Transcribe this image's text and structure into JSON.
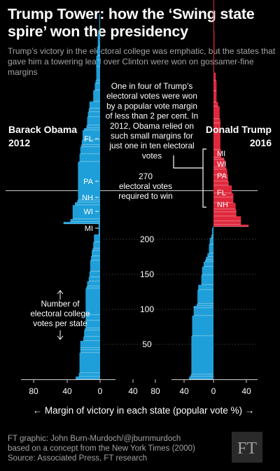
{
  "header": {
    "title": "Trump Tower: how the ‘Swing state spire’ won the presidency",
    "subtitle": "Trump’s victory in the electoral college was emphatic, but the states that gave him a towering lead over Clinton were won on gossamer-fine margins"
  },
  "chart_data": {
    "type": "bar",
    "orientation": "horizontal-stacked-tower",
    "y_unit": "Number of electoral college votes per state",
    "x_label": "← Margin of victory in each state (popular vote %) →",
    "x_ticks": [
      "80",
      "40",
      "0",
      "40"
    ],
    "y_ticks": [
      50,
      100,
      150,
      200
    ],
    "ylim": [
      0,
      335
    ],
    "threshold": {
      "value": 270,
      "label_value": "270",
      "label_text": "electoral votes required to win"
    },
    "grid": true,
    "colors": {
      "democrat": "#1f9fd9",
      "republican": "#e0283c"
    },
    "series": [
      {
        "name": "Barack Obama 2012",
        "panel": "left",
        "bars": [
          {
            "state": "",
            "margin": -32,
            "ev": 4
          },
          {
            "state": "",
            "margin": -28,
            "ev": 5
          },
          {
            "state": "",
            "margin": -27,
            "ev": 29
          },
          {
            "state": "",
            "margin": -26,
            "ev": 4
          },
          {
            "state": "",
            "margin": -26,
            "ev": 3
          },
          {
            "state": "",
            "margin": -26,
            "ev": 10
          },
          {
            "state": "",
            "margin": -22,
            "ev": 6
          },
          {
            "state": "",
            "margin": -21,
            "ev": 9
          },
          {
            "state": "",
            "margin": -20,
            "ev": 3
          },
          {
            "state": "",
            "margin": -19,
            "ev": 11
          },
          {
            "state": "",
            "margin": -19,
            "ev": 8
          },
          {
            "state": "",
            "margin": -19,
            "ev": 38
          },
          {
            "state": "",
            "margin": -18,
            "ev": 3
          },
          {
            "state": "",
            "margin": -17,
            "ev": 7
          },
          {
            "state": "",
            "margin": -15,
            "ev": 6
          },
          {
            "state": "",
            "margin": -14,
            "ev": 8
          },
          {
            "state": "",
            "margin": -13,
            "ev": 16
          },
          {
            "state": "",
            "margin": -12,
            "ev": 6
          },
          {
            "state": "",
            "margin": -11,
            "ev": 8
          },
          {
            "state": "",
            "margin": -10,
            "ev": 3
          },
          {
            "state": "",
            "margin": -9,
            "ev": 9
          },
          {
            "state": "",
            "margin": -8,
            "ev": 11
          },
          {
            "state": "",
            "margin": -2,
            "ev": 15
          },
          {
            "state": "",
            "margin": -48,
            "ev": 3
          },
          {
            "state": "",
            "margin": -39,
            "ev": 4
          },
          {
            "state": "",
            "margin": -36,
            "ev": 20
          },
          {
            "state": "",
            "margin": -33,
            "ev": 4
          },
          {
            "state": "",
            "margin": -30,
            "ev": 3
          },
          {
            "state": "",
            "margin": -29,
            "ev": 55
          },
          {
            "state": "",
            "margin": -27,
            "ev": 11
          },
          {
            "state": "",
            "margin": -26,
            "ev": 10
          },
          {
            "state": "",
            "margin": -25,
            "ev": 3
          },
          {
            "state": "",
            "margin": -24,
            "ev": 7
          },
          {
            "state": "",
            "margin": -23,
            "ev": 14
          },
          {
            "state": "",
            "margin": -21,
            "ev": 3
          },
          {
            "state": "",
            "margin": -18,
            "ev": 4
          },
          {
            "state": "",
            "margin": -17,
            "ev": 12
          },
          {
            "state": "",
            "margin": -16,
            "ev": 7
          },
          {
            "state": "",
            "margin": -15,
            "ev": 5
          },
          {
            "state": "",
            "margin": -14,
            "ev": 10
          },
          {
            "state": "MI",
            "margin": -9,
            "ev": 16
          },
          {
            "state": "WI",
            "margin": -7,
            "ev": 10
          },
          {
            "state": "NH",
            "margin": -6,
            "ev": 4
          },
          {
            "state": "PA",
            "margin": -5,
            "ev": 20
          },
          {
            "state": "",
            "margin": -5,
            "ev": 9
          },
          {
            "state": "",
            "margin": -5,
            "ev": 6
          },
          {
            "state": "",
            "margin": -4,
            "ev": 13
          },
          {
            "state": "",
            "margin": -3,
            "ev": 18
          },
          {
            "state": "FL",
            "margin": -1,
            "ev": 29
          }
        ]
      },
      {
        "name": "Donald Trump 2016",
        "panel": "right",
        "bars": [
          {
            "state": "",
            "margin": -32,
            "ev": 4
          },
          {
            "state": "",
            "margin": -30,
            "ev": 3
          },
          {
            "state": "",
            "margin": -29,
            "ev": 55
          },
          {
            "state": "",
            "margin": -28,
            "ev": 29
          },
          {
            "state": "",
            "margin": -26,
            "ev": 11
          },
          {
            "state": "",
            "margin": -26,
            "ev": 3
          },
          {
            "state": "",
            "margin": -22,
            "ev": 3
          },
          {
            "state": "",
            "margin": -21,
            "ev": 20
          },
          {
            "state": "",
            "margin": -20,
            "ev": 7
          },
          {
            "state": "",
            "margin": -16,
            "ev": 14
          },
          {
            "state": "",
            "margin": -15,
            "ev": 12
          },
          {
            "state": "",
            "margin": -13,
            "ev": 7
          },
          {
            "state": "",
            "margin": -11,
            "ev": 3
          },
          {
            "state": "",
            "margin": -10,
            "ev": 4
          },
          {
            "state": "",
            "margin": -8,
            "ev": 5
          },
          {
            "state": "",
            "margin": -6,
            "ev": 13
          },
          {
            "state": "",
            "margin": -5,
            "ev": 9
          },
          {
            "state": "",
            "margin": -3,
            "ev": 4
          },
          {
            "state": "",
            "margin": -2,
            "ev": 10
          },
          {
            "state": "",
            "margin": -1,
            "ev": 2
          },
          {
            "state": "",
            "margin": 46,
            "ev": 3
          },
          {
            "state": "",
            "margin": 36,
            "ev": 5
          },
          {
            "state": "",
            "margin": 36,
            "ev": 7
          },
          {
            "state": "",
            "margin": 30,
            "ev": 6
          },
          {
            "state": "",
            "margin": 30,
            "ev": 4
          },
          {
            "state": "",
            "margin": 29,
            "ev": 9
          },
          {
            "state": "",
            "margin": 26,
            "ev": 8
          },
          {
            "state": "",
            "margin": 26,
            "ev": 6
          },
          {
            "state": "",
            "margin": 24,
            "ev": 11
          },
          {
            "state": "",
            "margin": 20,
            "ev": 6
          },
          {
            "state": "",
            "margin": 19,
            "ev": 9
          },
          {
            "state": "",
            "margin": 18,
            "ev": 8
          },
          {
            "state": "",
            "margin": 17,
            "ev": 3
          },
          {
            "state": "",
            "margin": 15,
            "ev": 11
          },
          {
            "state": "",
            "margin": 14,
            "ev": 3
          },
          {
            "state": "",
            "margin": 10,
            "ev": 11
          },
          {
            "state": "",
            "margin": 9,
            "ev": 38
          },
          {
            "state": "",
            "margin": 9,
            "ev": 6
          },
          {
            "state": "",
            "margin": 8,
            "ev": 18
          },
          {
            "state": "",
            "margin": 6,
            "ev": 6
          },
          {
            "state": "",
            "margin": 4,
            "ev": 16
          },
          {
            "state": "",
            "margin": 4,
            "ev": 15
          },
          {
            "state": "",
            "margin": 3,
            "ev": 11
          },
          {
            "state": "",
            "margin": 1,
            "ev": 1
          },
          {
            "state": "NH",
            "margin": 0.4,
            "ev": 29
          },
          {
            "state": "FL",
            "margin": 1.2,
            "ev": 29
          },
          {
            "state": "PA",
            "margin": 0.7,
            "ev": 20
          },
          {
            "state": "WI",
            "margin": 0.8,
            "ev": 10
          },
          {
            "state": "MI",
            "margin": 0.2,
            "ev": 16
          }
        ]
      }
    ],
    "annotations": {
      "left_label": [
        "Barack Obama",
        "2012"
      ],
      "right_label": [
        "Donald Trump",
        "2016"
      ],
      "spire_note": [
        "One in four of Trump’s",
        "electoral votes were won",
        "by a popular vote margin",
        "of less than 2 per cent. In",
        "2012, Obama relied on",
        "such small margins for",
        "just one in ten electoral",
        "votes"
      ],
      "y_note": [
        "Number of",
        "electoral college",
        "votes per state"
      ],
      "left_state_labels": [
        "FL",
        "PA",
        "NH",
        "WI",
        "MI"
      ],
      "right_state_labels": [
        "MI",
        "WI",
        "PA",
        "FL",
        "NH"
      ]
    }
  },
  "footer": {
    "credit_lines": [
      "FT graphic: John Burn-Murdoch/@jburnmurdoch",
      "based on a concept from the New York Times (2000)",
      "Source: Associated Press, FT research"
    ],
    "logo_text": "FT"
  }
}
